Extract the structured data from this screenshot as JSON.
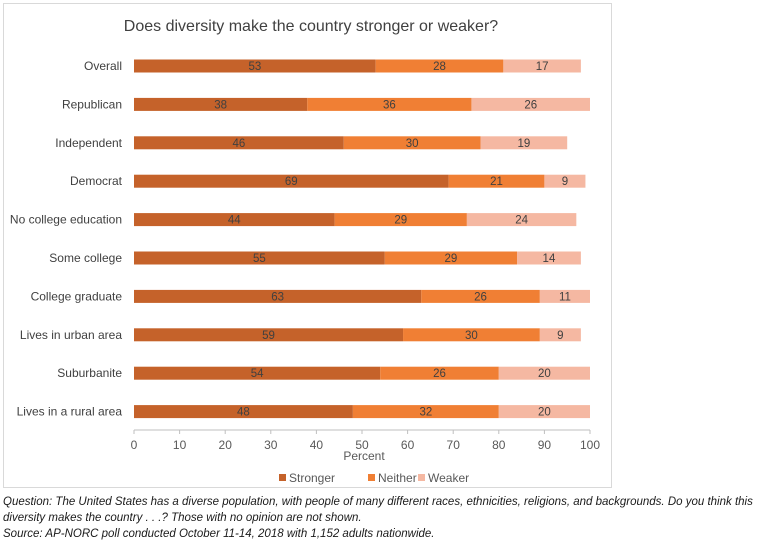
{
  "chart_data": {
    "type": "bar",
    "orientation": "horizontal",
    "stacked": true,
    "title": "Does diversity make the country stronger or weaker?",
    "xlabel": "Percent",
    "ylabel": "",
    "xlim": [
      0,
      100
    ],
    "xticks": [
      0,
      10,
      20,
      30,
      40,
      50,
      60,
      70,
      80,
      90,
      100
    ],
    "grid": false,
    "legend": "bottom",
    "categories": [
      "Overall",
      "Republican",
      "Independent",
      "Democrat",
      "No college education",
      "Some college",
      "College graduate",
      "Lives in urban area",
      "Suburbanite",
      "Lives in a rural area"
    ],
    "series": [
      {
        "name": "Stronger",
        "color": "#c5622a",
        "values": [
          53,
          38,
          46,
          69,
          44,
          55,
          63,
          59,
          54,
          48
        ]
      },
      {
        "name": "Neither",
        "color": "#f07f34",
        "values": [
          28,
          36,
          30,
          21,
          29,
          29,
          26,
          30,
          26,
          32
        ]
      },
      {
        "name": "Weaker",
        "color": "#f5b8a2",
        "values": [
          17,
          26,
          19,
          9,
          24,
          14,
          11,
          9,
          20,
          20
        ]
      }
    ]
  },
  "notes": {
    "question_line1": "Question: The United States has a diverse population, with people of many different races, ethnicities, religions, and backgrounds. Do you think this",
    "question_line2": "diversity makes the country . . .? Those with no opinion are not shown.",
    "source": "Source: AP-NORC poll conducted October 11-14, 2018 with 1,152 adults nationwide."
  }
}
